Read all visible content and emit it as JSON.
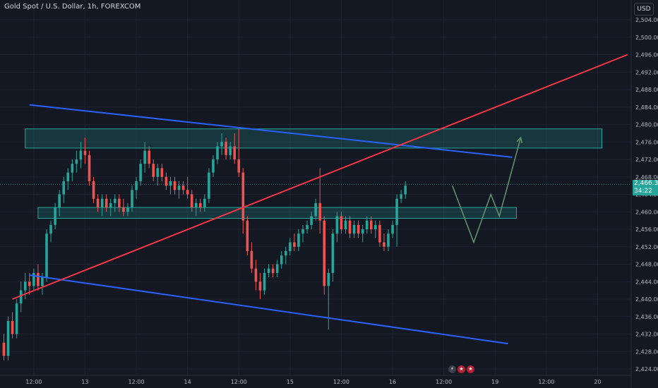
{
  "header": {
    "title": "Gold Spot / U.S. Dollar, 1h, FOREXCOM",
    "currency_label": "USD"
  },
  "last_price": {
    "value": "2,466.31",
    "countdown": "34:22"
  },
  "icons": [
    {
      "name": "lightning-icon",
      "color": "#3a3e4a",
      "glyph": "⚡"
    },
    {
      "name": "us-flag-icon",
      "color": "#b22234",
      "glyph": "★"
    },
    {
      "name": "us-flag-icon-2",
      "color": "#b22234",
      "glyph": "★"
    }
  ],
  "chart_data": {
    "type": "candlestick",
    "ylim": [
      2422,
      2508
    ],
    "y_ticks": [
      2424,
      2428,
      2432,
      2436,
      2440,
      2444,
      2448,
      2452,
      2456,
      2460,
      2464,
      2468,
      2472,
      2476,
      2480,
      2484,
      2488,
      2492,
      2496,
      2500,
      2504
    ],
    "y_tick_labels": [
      "2,424.00",
      "2,428.00",
      "2,432.00",
      "2,436.00",
      "2,440.00",
      "2,444.00",
      "2,448.00",
      "2,452.00",
      "2,456.00",
      "2,460.00",
      "2,464.00",
      "2,468.00",
      "2,472.00",
      "2,476.00",
      "2,480.00",
      "2,484.00",
      "2,488.00",
      "2,492.00",
      "2,496.00",
      "2,500.00",
      "2,504.00"
    ],
    "x_ticks": [
      {
        "label": "12:00",
        "bar": 7
      },
      {
        "label": "13",
        "bar": 19
      },
      {
        "label": "12:00",
        "bar": 31
      },
      {
        "label": "14",
        "bar": 43
      },
      {
        "label": "12:00",
        "bar": 55
      },
      {
        "label": "15",
        "bar": 67
      },
      {
        "label": "12:00",
        "bar": 79
      },
      {
        "label": "16",
        "bar": 91
      },
      {
        "label": "12:00",
        "bar": 103
      },
      {
        "label": "19",
        "bar": 115
      },
      {
        "label": "12:00",
        "bar": 127
      },
      {
        "label": "20",
        "bar": 139
      }
    ],
    "colors": {
      "up": "#26a69a",
      "down": "#ef5350",
      "trend_blue": "#2962ff",
      "trend_red": "#f23645",
      "zone": "#26a69a",
      "projection": "#5e8f6a"
    },
    "ohlc": [
      [
        2430,
        2432,
        2426,
        2427
      ],
      [
        2427,
        2436,
        2426,
        2435
      ],
      [
        2435,
        2437,
        2431,
        2432
      ],
      [
        2432,
        2440,
        2431,
        2439
      ],
      [
        2439,
        2444,
        2437,
        2442
      ],
      [
        2442,
        2446,
        2440,
        2444
      ],
      [
        2444,
        2446,
        2441,
        2443
      ],
      [
        2443,
        2447,
        2442,
        2446
      ],
      [
        2446,
        2448,
        2442,
        2443
      ],
      [
        2443,
        2446,
        2441,
        2445
      ],
      [
        2445,
        2456,
        2444,
        2455
      ],
      [
        2455,
        2458,
        2453,
        2457
      ],
      [
        2457,
        2462,
        2456,
        2461
      ],
      [
        2461,
        2465,
        2459,
        2464
      ],
      [
        2464,
        2468,
        2462,
        2467
      ],
      [
        2467,
        2470,
        2465,
        2469
      ],
      [
        2469,
        2472,
        2467,
        2471
      ],
      [
        2471,
        2474,
        2469,
        2472
      ],
      [
        2472,
        2476,
        2470,
        2474
      ],
      [
        2474,
        2477,
        2471,
        2473
      ],
      [
        2473,
        2474,
        2466,
        2467
      ],
      [
        2467,
        2468,
        2462,
        2463
      ],
      [
        2463,
        2464,
        2460,
        2461
      ],
      [
        2461,
        2464,
        2459,
        2463
      ],
      [
        2463,
        2464,
        2460,
        2461
      ],
      [
        2461,
        2463,
        2459,
        2462
      ],
      [
        2462,
        2464,
        2460,
        2463
      ],
      [
        2463,
        2464,
        2460,
        2461
      ],
      [
        2461,
        2463,
        2459,
        2460
      ],
      [
        2460,
        2462,
        2459,
        2461
      ],
      [
        2461,
        2466,
        2460,
        2465
      ],
      [
        2465,
        2468,
        2463,
        2467
      ],
      [
        2467,
        2472,
        2466,
        2471
      ],
      [
        2471,
        2476,
        2469,
        2474
      ],
      [
        2474,
        2475,
        2470,
        2471
      ],
      [
        2471,
        2472,
        2467,
        2468
      ],
      [
        2468,
        2471,
        2466,
        2470
      ],
      [
        2470,
        2471,
        2467,
        2468
      ],
      [
        2468,
        2469,
        2465,
        2466
      ],
      [
        2466,
        2468,
        2464,
        2467
      ],
      [
        2467,
        2468,
        2464,
        2465
      ],
      [
        2465,
        2467,
        2463,
        2466
      ],
      [
        2466,
        2467,
        2464,
        2465
      ],
      [
        2465,
        2468,
        2463,
        2464
      ],
      [
        2464,
        2465,
        2460,
        2461
      ],
      [
        2461,
        2463,
        2459,
        2462
      ],
      [
        2462,
        2463,
        2460,
        2461
      ],
      [
        2461,
        2464,
        2460,
        2463
      ],
      [
        2463,
        2470,
        2462,
        2469
      ],
      [
        2469,
        2473,
        2468,
        2472
      ],
      [
        2472,
        2476,
        2471,
        2475
      ],
      [
        2475,
        2478,
        2473,
        2476
      ],
      [
        2476,
        2477,
        2472,
        2473
      ],
      [
        2473,
        2476,
        2472,
        2475
      ],
      [
        2475,
        2478,
        2471,
        2472
      ],
      [
        2472,
        2479,
        2468,
        2469
      ],
      [
        2469,
        2470,
        2455,
        2458
      ],
      [
        2458,
        2459,
        2450,
        2451
      ],
      [
        2451,
        2453,
        2446,
        2447
      ],
      [
        2447,
        2449,
        2442,
        2444
      ],
      [
        2444,
        2446,
        2440,
        2442
      ],
      [
        2442,
        2447,
        2441,
        2446
      ],
      [
        2446,
        2448,
        2445,
        2447
      ],
      [
        2447,
        2448,
        2445,
        2446
      ],
      [
        2446,
        2449,
        2445,
        2448
      ],
      [
        2448,
        2451,
        2447,
        2450
      ],
      [
        2450,
        2452,
        2448,
        2451
      ],
      [
        2451,
        2454,
        2450,
        2453
      ],
      [
        2453,
        2455,
        2451,
        2452
      ],
      [
        2452,
        2456,
        2451,
        2455
      ],
      [
        2455,
        2457,
        2453,
        2456
      ],
      [
        2456,
        2458,
        2455,
        2457
      ],
      [
        2457,
        2460,
        2456,
        2459
      ],
      [
        2459,
        2463,
        2458,
        2462
      ],
      [
        2462,
        2470,
        2455,
        2458
      ],
      [
        2458,
        2459,
        2441,
        2443
      ],
      [
        2443,
        2447,
        2433,
        2446
      ],
      [
        2446,
        2456,
        2444,
        2455
      ],
      [
        2455,
        2460,
        2453,
        2459
      ],
      [
        2459,
        2460,
        2455,
        2456
      ],
      [
        2456,
        2459,
        2455,
        2458
      ],
      [
        2458,
        2459,
        2454,
        2455
      ],
      [
        2455,
        2458,
        2454,
        2457
      ],
      [
        2457,
        2458,
        2454,
        2455
      ],
      [
        2455,
        2457,
        2453,
        2456
      ],
      [
        2456,
        2459,
        2455,
        2458
      ],
      [
        2458,
        2459,
        2455,
        2456
      ],
      [
        2456,
        2458,
        2454,
        2457
      ],
      [
        2457,
        2458,
        2452,
        2453
      ],
      [
        2453,
        2455,
        2451,
        2452
      ],
      [
        2452,
        2456,
        2451,
        2455
      ],
      [
        2455,
        2458,
        2454,
        2457
      ],
      [
        2457,
        2464,
        2452,
        2463
      ],
      [
        2463,
        2465,
        2462,
        2464
      ],
      [
        2464,
        2467,
        2463,
        2466
      ]
    ],
    "zones": [
      {
        "bar_start": 5,
        "bar_end": 140,
        "top": 2479,
        "bottom": 2474.6
      },
      {
        "bar_start": 8,
        "bar_end": 120,
        "top": 2461,
        "bottom": 2458.5
      }
    ],
    "trendlines": [
      {
        "color": "trend_blue",
        "from": [
          6,
          2484.5
        ],
        "to": [
          119,
          2472.5
        ]
      },
      {
        "color": "trend_blue",
        "from": [
          6,
          2445.5
        ],
        "to": [
          118,
          2429.8
        ]
      },
      {
        "color": "trend_red",
        "from": [
          2,
          2440
        ],
        "to": [
          146,
          2496
        ]
      }
    ],
    "projection": [
      [
        105,
        2466
      ],
      [
        110,
        2453
      ],
      [
        114,
        2464
      ],
      [
        116,
        2459
      ],
      [
        121,
        2477
      ]
    ],
    "last_price_line": 2466.31
  }
}
